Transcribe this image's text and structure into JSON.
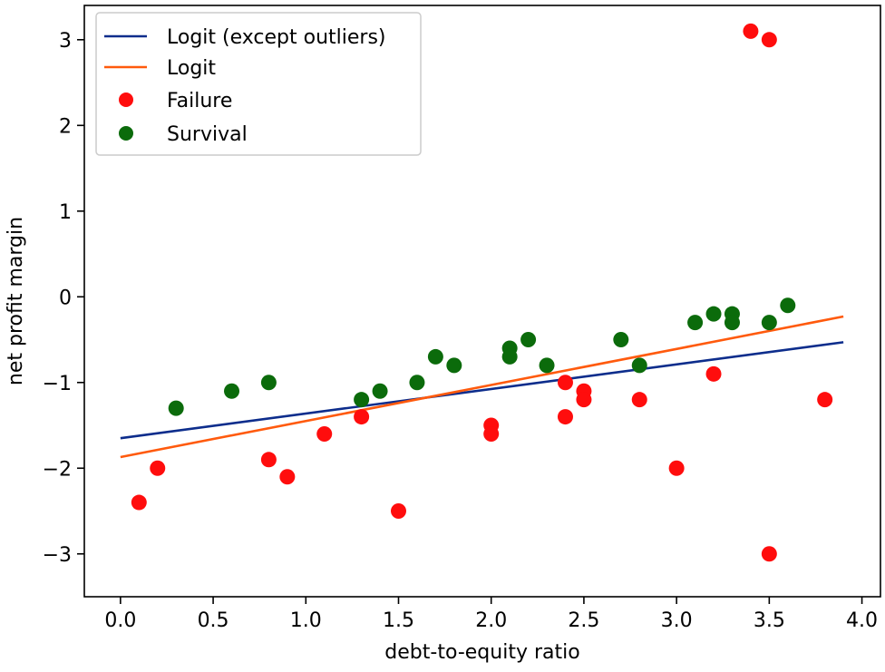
{
  "chart_data": {
    "type": "scatter",
    "title": "",
    "xlabel": "debt-to-equity ratio",
    "ylabel": "net profit margin",
    "xlim": [
      -0.195,
      4.1
    ],
    "ylim": [
      -3.5,
      3.4
    ],
    "grid": false,
    "legend_position": "top-left",
    "x_ticks": [
      {
        "value": 0.0,
        "label": "0.0"
      },
      {
        "value": 0.5,
        "label": "0.5"
      },
      {
        "value": 1.0,
        "label": "1.0"
      },
      {
        "value": 1.5,
        "label": "1.5"
      },
      {
        "value": 2.0,
        "label": "2.0"
      },
      {
        "value": 2.5,
        "label": "2.5"
      },
      {
        "value": 3.0,
        "label": "3.0"
      },
      {
        "value": 3.5,
        "label": "3.5"
      },
      {
        "value": 4.0,
        "label": "4.0"
      }
    ],
    "y_ticks": [
      {
        "value": -3,
        "label": "−3"
      },
      {
        "value": -2,
        "label": "−2"
      },
      {
        "value": -1,
        "label": "−1"
      },
      {
        "value": 0,
        "label": "0"
      },
      {
        "value": 1,
        "label": "1"
      },
      {
        "value": 2,
        "label": "2"
      },
      {
        "value": 3,
        "label": "3"
      }
    ],
    "lines": [
      {
        "name": "Logit (except outliers)",
        "color": "#0d2d8c",
        "x": [
          0.0,
          3.9
        ],
        "y": [
          -1.65,
          -0.53
        ]
      },
      {
        "name": "Logit",
        "color": "#ff5a0d",
        "x": [
          0.0,
          3.9
        ],
        "y": [
          -1.87,
          -0.23
        ]
      }
    ],
    "scatter": [
      {
        "name": "Failure",
        "color": "#ff0d0d",
        "points": [
          [
            0.1,
            -2.4
          ],
          [
            0.2,
            -2.0
          ],
          [
            0.8,
            -1.9
          ],
          [
            0.9,
            -2.1
          ],
          [
            1.1,
            -1.6
          ],
          [
            1.3,
            -1.4
          ],
          [
            1.5,
            -2.5
          ],
          [
            2.0,
            -1.5
          ],
          [
            2.0,
            -1.6
          ],
          [
            2.4,
            -1.0
          ],
          [
            2.4,
            -1.4
          ],
          [
            2.5,
            -1.1
          ],
          [
            2.5,
            -1.2
          ],
          [
            2.8,
            -1.2
          ],
          [
            3.0,
            -2.0
          ],
          [
            3.2,
            -0.9
          ],
          [
            3.4,
            3.1
          ],
          [
            3.5,
            3.0
          ],
          [
            3.5,
            -3.0
          ],
          [
            3.8,
            -1.2
          ]
        ]
      },
      {
        "name": "Survival",
        "color": "#0b6b0b",
        "points": [
          [
            0.3,
            -1.3
          ],
          [
            0.6,
            -1.1
          ],
          [
            0.8,
            -1.0
          ],
          [
            1.3,
            -1.2
          ],
          [
            1.4,
            -1.1
          ],
          [
            1.6,
            -1.0
          ],
          [
            1.7,
            -0.7
          ],
          [
            1.8,
            -0.8
          ],
          [
            2.1,
            -0.6
          ],
          [
            2.1,
            -0.7
          ],
          [
            2.2,
            -0.5
          ],
          [
            2.3,
            -0.8
          ],
          [
            2.7,
            -0.5
          ],
          [
            2.8,
            -0.8
          ],
          [
            3.1,
            -0.3
          ],
          [
            3.2,
            -0.2
          ],
          [
            3.3,
            -0.2
          ],
          [
            3.3,
            -0.3
          ],
          [
            3.5,
            -0.3
          ],
          [
            3.6,
            -0.1
          ]
        ]
      }
    ]
  }
}
